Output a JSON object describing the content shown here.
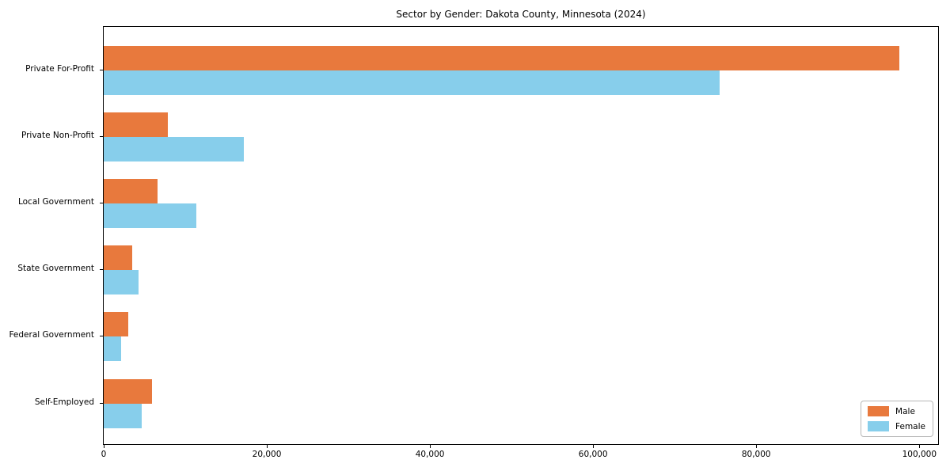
{
  "chart_data": {
    "type": "bar",
    "orientation": "horizontal",
    "title": "Sector by Gender: Dakota County, Minnesota (2024)",
    "categories": [
      "Private For-Profit",
      "Private Non-Profit",
      "Local Government",
      "State Government",
      "Federal Government",
      "Self-Employed"
    ],
    "series": [
      {
        "name": "Male",
        "color": "#e8793d",
        "values": [
          97500,
          7900,
          6600,
          3500,
          3000,
          5900
        ]
      },
      {
        "name": "Female",
        "color": "#87ceeb",
        "values": [
          75500,
          17200,
          11400,
          4300,
          2100,
          4700
        ]
      }
    ],
    "xlabel": "",
    "ylabel": "",
    "xlim": [
      0,
      102300
    ],
    "x_ticks": [
      0,
      20000,
      40000,
      60000,
      80000,
      100000
    ],
    "x_tick_labels": [
      "0",
      "20,000",
      "40,000",
      "60,000",
      "80,000",
      "100,000"
    ],
    "grid": false,
    "legend_position": "lower right",
    "spine_color": "#000000",
    "background_color": "#ffffff"
  }
}
